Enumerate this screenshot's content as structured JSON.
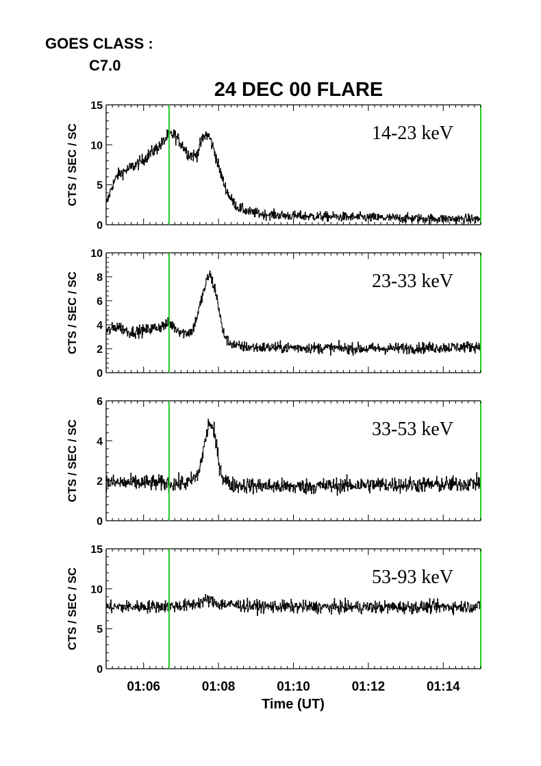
{
  "header": {
    "goes_label": "GOES CLASS :",
    "goes_value": "C7.0"
  },
  "chart_data": {
    "type": "line",
    "title": "24 DEC 00 FLARE",
    "xlabel": "Time (UT)",
    "x_unit": "minutes after 01:00 UT",
    "xlim": [
      5.0,
      15.0
    ],
    "xticks": [
      6,
      8,
      10,
      12,
      14
    ],
    "xtick_labels": [
      "01:06",
      "01:08",
      "01:10",
      "01:12",
      "01:14"
    ],
    "grid": false,
    "marker_line": {
      "x": 6.68,
      "color": "#22cc22"
    },
    "line_color": "#000000",
    "panels": [
      {
        "label": "14-23 keV",
        "ylabel": "CTS / SEC / SC",
        "ylim": [
          0,
          15
        ],
        "yticks": [
          0,
          5,
          10,
          15
        ],
        "noise": 0.35,
        "profile": [
          [
            5.0,
            2.5
          ],
          [
            5.15,
            4.8
          ],
          [
            5.3,
            6.2
          ],
          [
            5.6,
            7.0
          ],
          [
            5.9,
            7.8
          ],
          [
            6.2,
            9.0
          ],
          [
            6.5,
            10.2
          ],
          [
            6.65,
            11.2
          ],
          [
            6.8,
            11.3
          ],
          [
            7.0,
            10.2
          ],
          [
            7.2,
            8.8
          ],
          [
            7.4,
            8.6
          ],
          [
            7.55,
            10.5
          ],
          [
            7.65,
            11.3
          ],
          [
            7.75,
            11.0
          ],
          [
            7.9,
            9.0
          ],
          [
            8.0,
            7.2
          ],
          [
            8.15,
            5.0
          ],
          [
            8.3,
            3.4
          ],
          [
            8.5,
            2.2
          ],
          [
            8.8,
            1.6
          ],
          [
            9.2,
            1.3
          ],
          [
            10.0,
            1.1
          ],
          [
            11.0,
            1.0
          ],
          [
            12.0,
            0.9
          ],
          [
            13.0,
            0.8
          ],
          [
            14.0,
            0.75
          ],
          [
            15.0,
            0.7
          ]
        ]
      },
      {
        "label": "23-33 keV",
        "ylabel": "CTS / SEC / SC",
        "ylim": [
          0,
          10
        ],
        "yticks": [
          0,
          2,
          4,
          6,
          8,
          10
        ],
        "noise": 0.25,
        "profile": [
          [
            5.0,
            3.4
          ],
          [
            5.3,
            3.9
          ],
          [
            5.6,
            3.4
          ],
          [
            6.0,
            3.5
          ],
          [
            6.5,
            3.9
          ],
          [
            6.7,
            4.1
          ],
          [
            6.9,
            3.6
          ],
          [
            7.1,
            3.3
          ],
          [
            7.3,
            3.5
          ],
          [
            7.45,
            5.0
          ],
          [
            7.6,
            6.8
          ],
          [
            7.75,
            8.3
          ],
          [
            7.9,
            7.0
          ],
          [
            8.0,
            5.5
          ],
          [
            8.1,
            3.5
          ],
          [
            8.25,
            2.6
          ],
          [
            8.5,
            2.2
          ],
          [
            9.0,
            2.1
          ],
          [
            10.0,
            2.1
          ],
          [
            12.0,
            2.0
          ],
          [
            14.0,
            2.1
          ],
          [
            15.0,
            2.2
          ]
        ]
      },
      {
        "label": "33-53 keV",
        "ylabel": "CTS / SEC / SC",
        "ylim": [
          0,
          6
        ],
        "yticks": [
          0,
          2,
          4,
          6
        ],
        "noise": 0.22,
        "profile": [
          [
            5.0,
            1.9
          ],
          [
            6.0,
            1.9
          ],
          [
            6.9,
            1.85
          ],
          [
            7.2,
            1.9
          ],
          [
            7.45,
            2.3
          ],
          [
            7.6,
            3.6
          ],
          [
            7.75,
            5.0
          ],
          [
            7.9,
            4.2
          ],
          [
            8.0,
            3.0
          ],
          [
            8.1,
            2.2
          ],
          [
            8.3,
            1.8
          ],
          [
            9.0,
            1.75
          ],
          [
            10.0,
            1.7
          ],
          [
            12.0,
            1.8
          ],
          [
            14.0,
            1.8
          ],
          [
            15.0,
            1.9
          ]
        ]
      },
      {
        "label": "53-93 keV",
        "ylabel": "CTS / SEC / SC",
        "ylim": [
          0,
          15
        ],
        "yticks": [
          0,
          5,
          10,
          15
        ],
        "noise": 0.35,
        "profile": [
          [
            5.0,
            7.7
          ],
          [
            6.5,
            7.8
          ],
          [
            7.2,
            7.9
          ],
          [
            7.7,
            8.6
          ],
          [
            8.0,
            8.1
          ],
          [
            9.0,
            7.8
          ],
          [
            11.0,
            7.7
          ],
          [
            13.0,
            7.7
          ],
          [
            15.0,
            7.8
          ]
        ]
      }
    ]
  }
}
